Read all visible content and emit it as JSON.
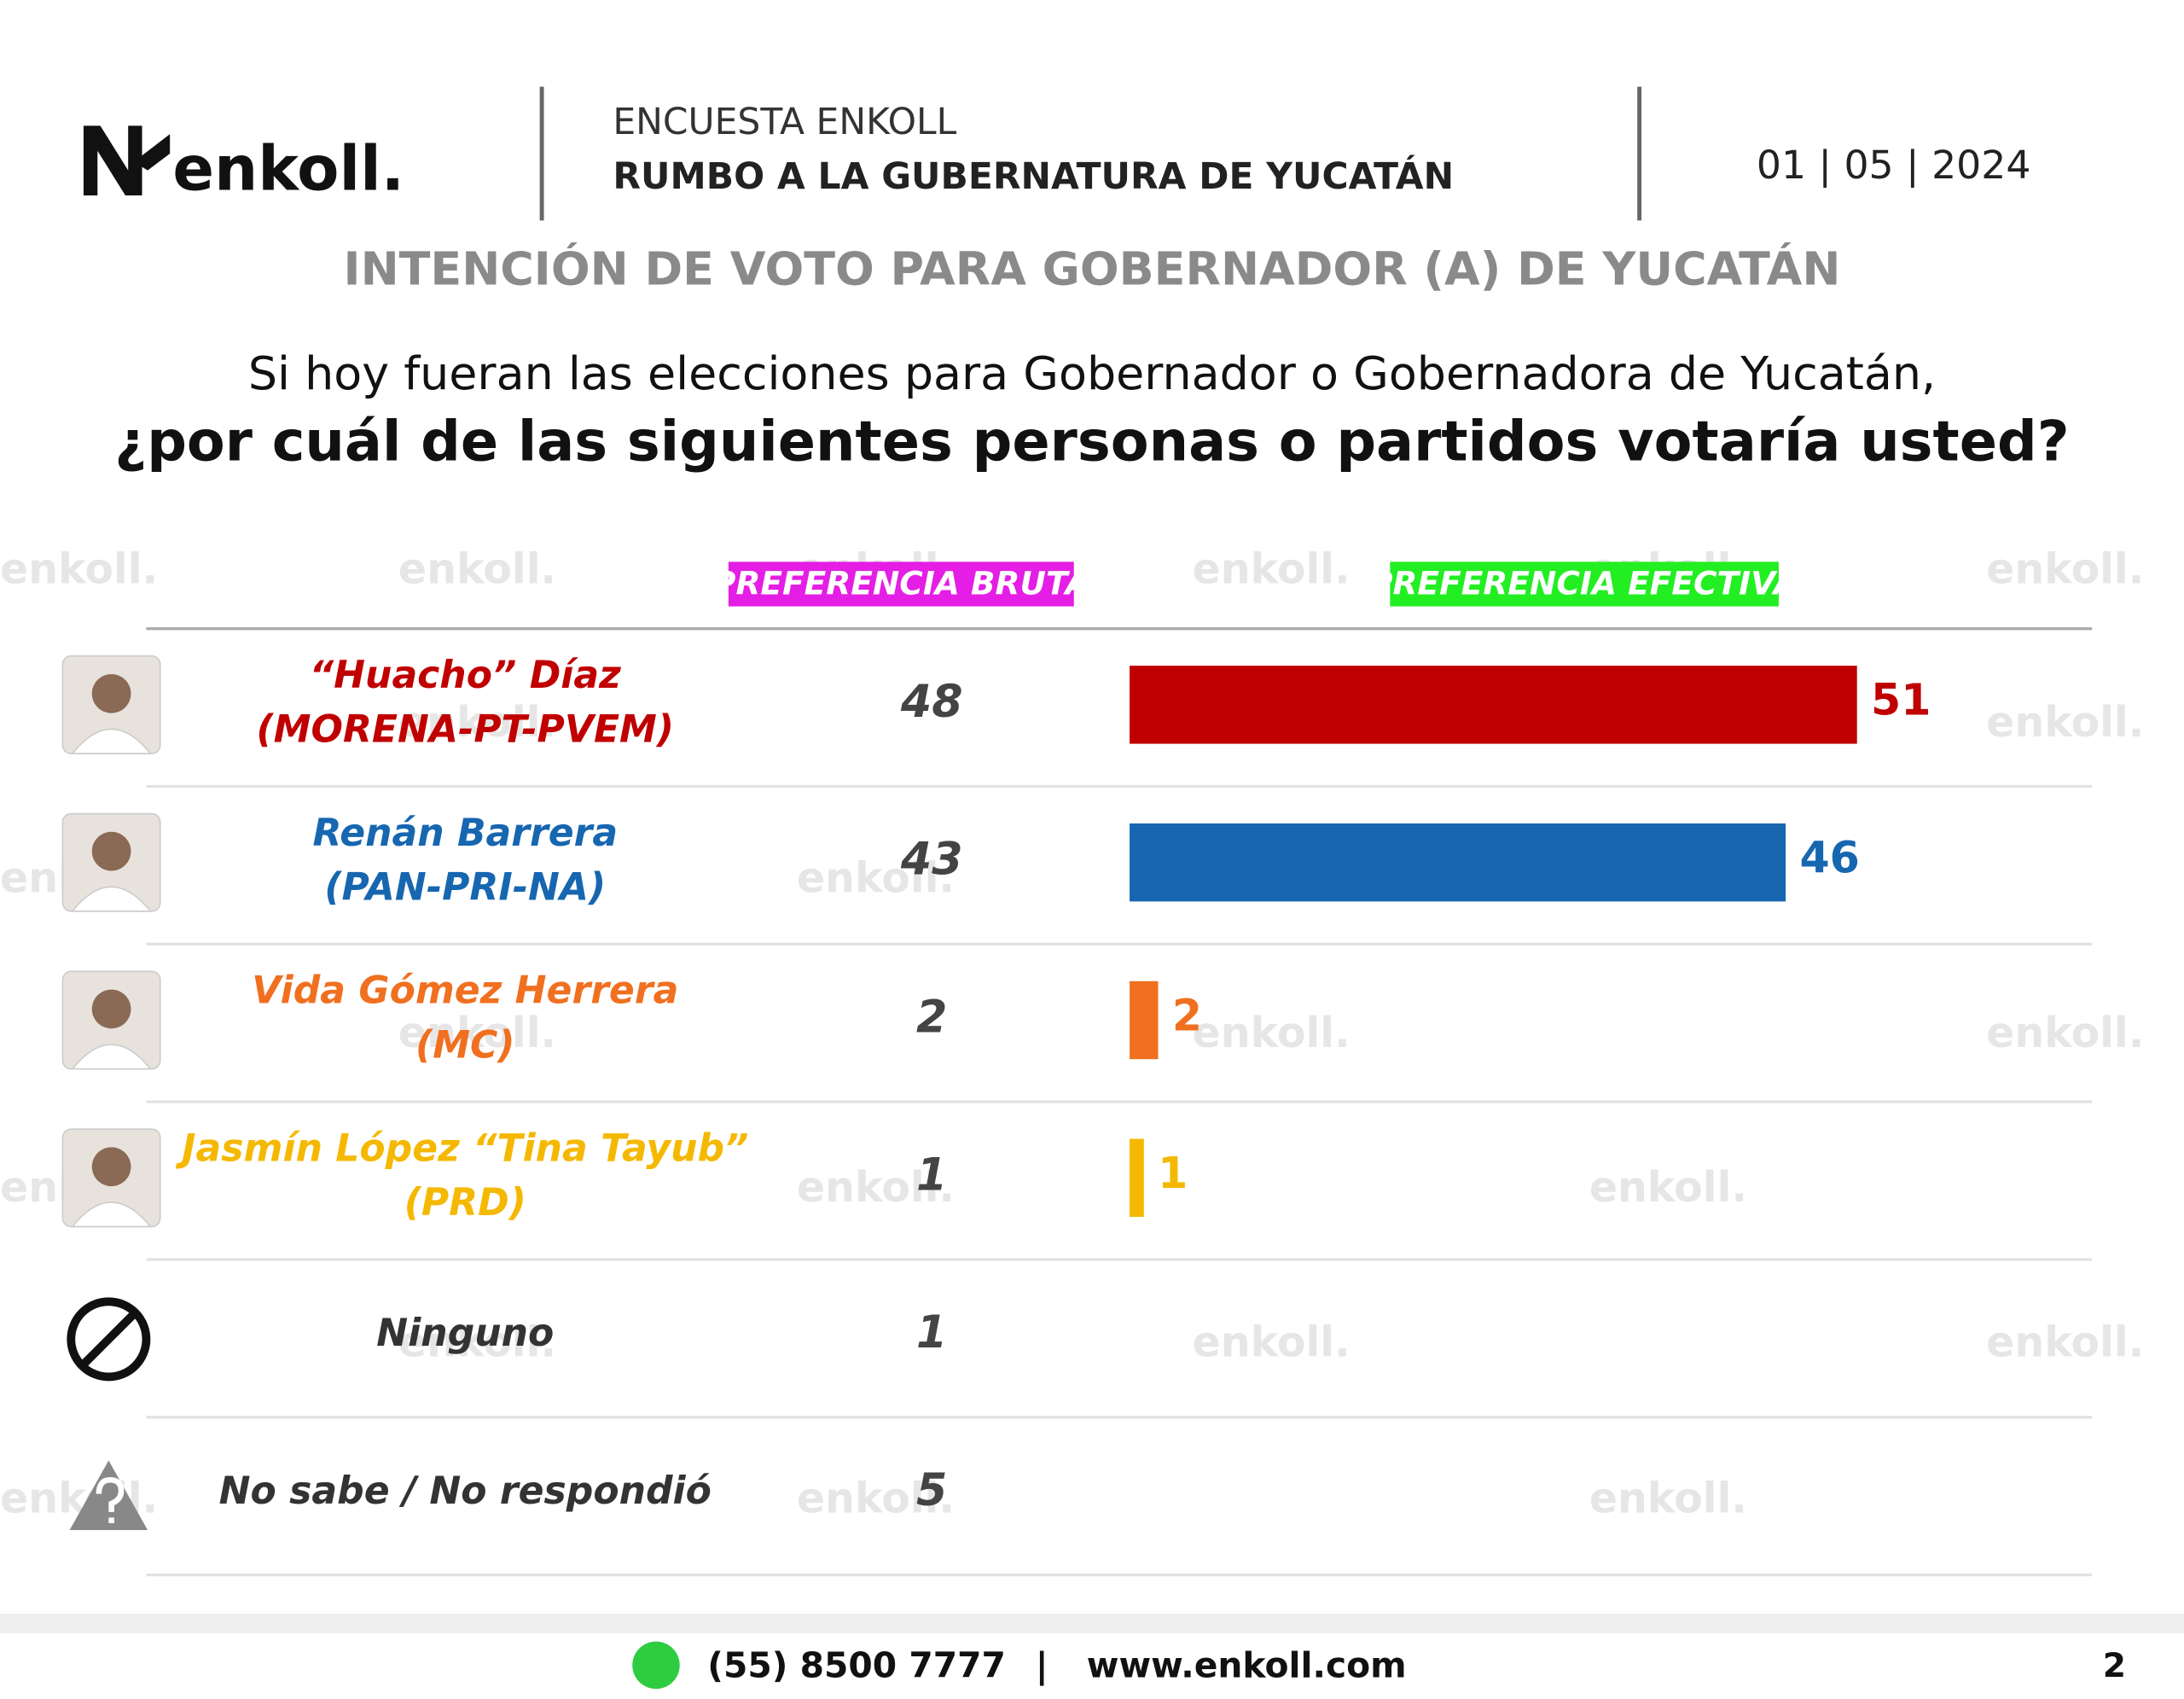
{
  "header": {
    "logo": "enkoll.",
    "survey": "ENCUESTA ENKOLL",
    "subject": "RUMBO A LA GUBERNATURA DE YUCATÁN",
    "date": "01 | 05 | 2024"
  },
  "watermark": "enkoll.",
  "chart_data": {
    "type": "bar",
    "title": "INTENCIÓN DE VOTO PARA GOBERNADOR (A) DE YUCATÁN",
    "subtitle": [
      "Si hoy fueran las elecciones para Gobernador o Gobernadora de Yucatán,",
      "¿por cuál de las siguientes personas o partidos votaría usted?"
    ],
    "categories": [
      [
        "“Huacho” Díaz",
        "(MORENA-PT-PVEM)"
      ],
      [
        "Renán Barrera",
        "(PAN-PRI-NA)"
      ],
      [
        "Vida Gómez Herrera",
        "(MC)"
      ],
      [
        "Jasmín López “Tina Tayub”",
        "(PRD)"
      ],
      [
        "Ninguno"
      ],
      [
        "No sabe / No respondió"
      ]
    ],
    "category_colors": [
      "#c00000",
      "#1766b0",
      "#f07020",
      "#f5b800",
      "#333333",
      "#333333"
    ],
    "series": [
      {
        "name": "PREFERENCIA BRUTA",
        "color": "#e41ee4",
        "values": [
          48,
          43,
          2,
          1,
          1,
          5
        ]
      },
      {
        "name": "PREFERENCIA EFECTIVA",
        "color": "#22ee22",
        "values": [
          51,
          46,
          2,
          1,
          null,
          null
        ]
      }
    ]
  },
  "footer": {
    "phone": "(55) 8500 7777",
    "separator": "|",
    "website": "www.enkoll.com",
    "page": "2"
  }
}
